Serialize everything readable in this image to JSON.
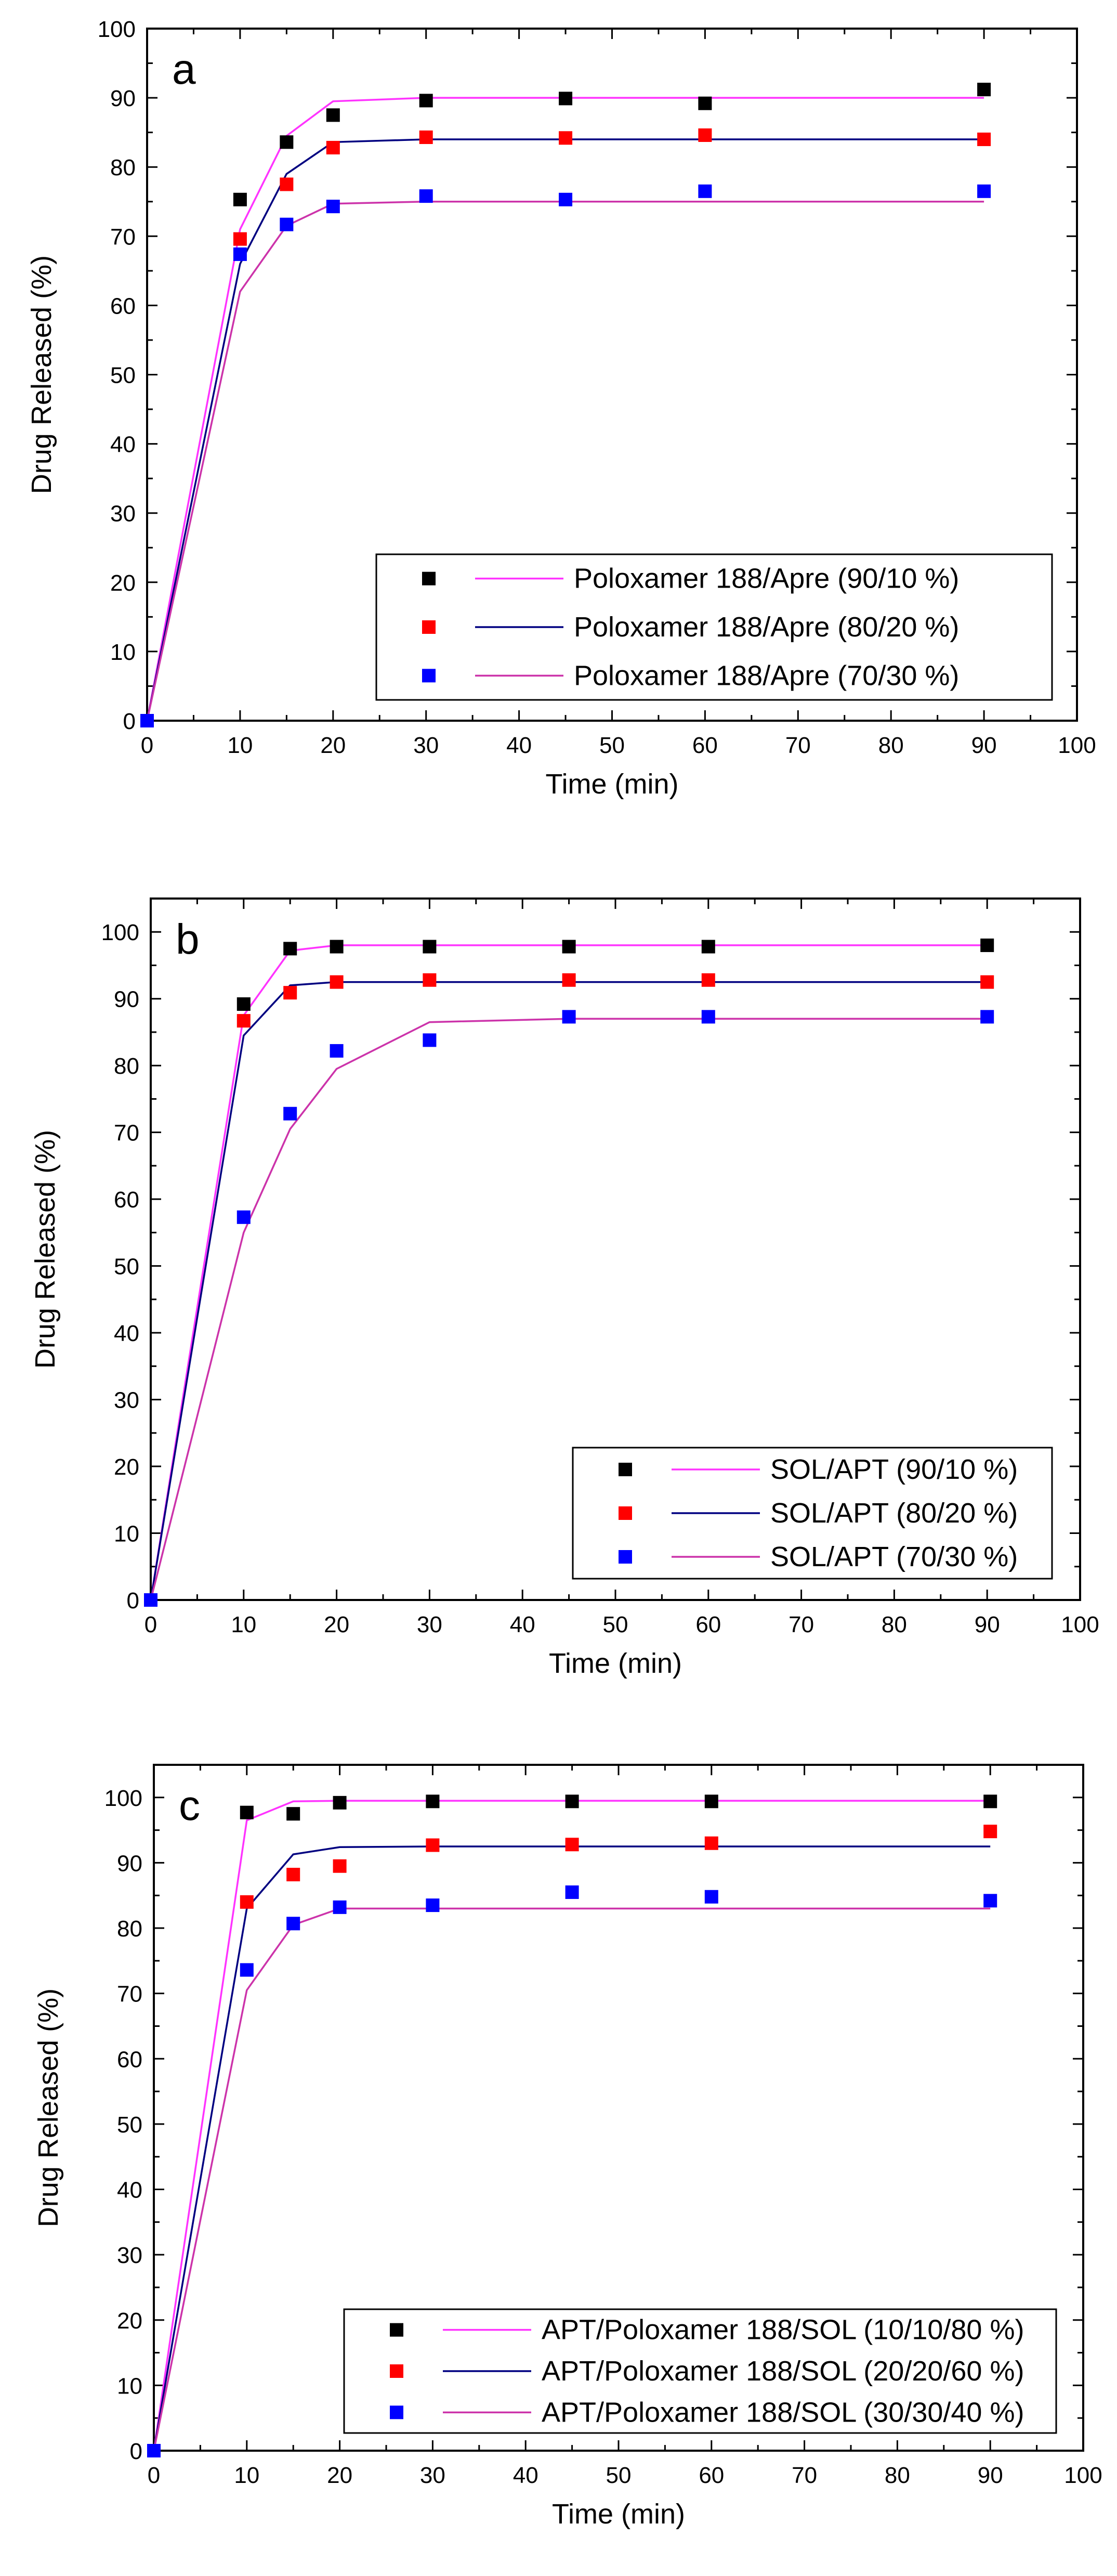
{
  "chart_data": [
    {
      "type": "scatter",
      "panel_label": "a",
      "xlabel": "Time (min)",
      "ylabel": "Drug Released (%)",
      "xlim": [
        0,
        100
      ],
      "ylim": [
        0,
        100
      ],
      "x_ticks": [
        0,
        10,
        20,
        30,
        40,
        50,
        60,
        70,
        80,
        90,
        100
      ],
      "y_ticks": [
        0,
        10,
        20,
        30,
        40,
        50,
        60,
        70,
        80,
        90,
        100
      ],
      "legend_position": "bottom-right",
      "series": [
        {
          "name": "Poloxamer 188/Apre (90/10 %)",
          "marker_color": "#000000",
          "line_color": "#ff33ff",
          "x": [
            0,
            10,
            15,
            20,
            30,
            45,
            60,
            90
          ],
          "y": [
            0,
            75.3,
            83.6,
            87.5,
            89.6,
            89.9,
            89.2,
            91.2
          ],
          "fit_x": [
            0,
            10,
            15,
            20,
            30,
            45,
            60,
            90
          ],
          "fit_y": [
            0,
            71,
            84.5,
            89.5,
            90,
            90,
            90,
            90
          ]
        },
        {
          "name": "Poloxamer 188/Apre (80/20 %)",
          "marker_color": "#ff0000",
          "line_color": "#000080",
          "x": [
            0,
            10,
            15,
            20,
            30,
            45,
            60,
            90
          ],
          "y": [
            0,
            69.6,
            77.5,
            82.8,
            84.3,
            84.2,
            84.6,
            84
          ],
          "fit_x": [
            0,
            10,
            15,
            20,
            30,
            45,
            60,
            90
          ],
          "fit_y": [
            0,
            66,
            79,
            83.6,
            84,
            84,
            84,
            84
          ]
        },
        {
          "name": "Poloxamer 188/Apre (70/30 %)",
          "marker_color": "#0000ff",
          "line_color": "#cc33aa",
          "x": [
            0,
            10,
            15,
            20,
            30,
            45,
            60,
            90
          ],
          "y": [
            0,
            67.4,
            71.7,
            74.3,
            75.8,
            75.3,
            76.5,
            76.5
          ],
          "fit_x": [
            0,
            10,
            15,
            20,
            30,
            45,
            60,
            90
          ],
          "fit_y": [
            0,
            62,
            71.5,
            74.7,
            75,
            75,
            75,
            75
          ]
        }
      ]
    },
    {
      "type": "scatter",
      "panel_label": "b",
      "xlabel": "Time (min)",
      "ylabel": "Drug Released (%)",
      "xlim": [
        0,
        100
      ],
      "ylim": [
        0,
        105
      ],
      "x_ticks": [
        0,
        10,
        20,
        30,
        40,
        50,
        60,
        70,
        80,
        90,
        100
      ],
      "y_ticks": [
        0,
        10,
        20,
        30,
        40,
        50,
        60,
        70,
        80,
        90,
        100
      ],
      "legend_position": "bottom-right",
      "series": [
        {
          "name": "SOL/APT (90/10 %)",
          "marker_color": "#000000",
          "line_color": "#ff33ff",
          "x": [
            0,
            10,
            15,
            20,
            30,
            45,
            60,
            90
          ],
          "y": [
            0,
            89.2,
            97.5,
            97.8,
            97.8,
            97.8,
            97.8,
            98
          ],
          "fit_x": [
            0,
            10,
            15,
            20,
            30,
            45,
            60,
            90
          ],
          "fit_y": [
            0,
            87.5,
            97.2,
            98,
            98,
            98,
            98,
            98
          ]
        },
        {
          "name": "SOL/APT (80/20 %)",
          "marker_color": "#ff0000",
          "line_color": "#000080",
          "x": [
            0,
            10,
            15,
            20,
            30,
            45,
            60,
            90
          ],
          "y": [
            0,
            86.7,
            90.9,
            92.5,
            92.8,
            92.8,
            92.8,
            92.5
          ],
          "fit_x": [
            0,
            10,
            15,
            20,
            30,
            45,
            60,
            90
          ],
          "fit_y": [
            0,
            84.5,
            92,
            92.5,
            92.5,
            92.5,
            92.5,
            92.5
          ]
        },
        {
          "name": "SOL/APT (70/30 %)",
          "marker_color": "#0000ff",
          "line_color": "#cc33aa",
          "x": [
            0,
            10,
            15,
            20,
            30,
            45,
            60,
            90
          ],
          "y": [
            0,
            57.3,
            72.8,
            82.2,
            83.8,
            87.3,
            87.3,
            87.3
          ],
          "fit_x": [
            0,
            10,
            15,
            20,
            30,
            45,
            60,
            90
          ],
          "fit_y": [
            0,
            55,
            70.5,
            79.5,
            86.5,
            87,
            87,
            87
          ]
        }
      ]
    },
    {
      "type": "scatter",
      "panel_label": "c",
      "xlabel": "Time (min)",
      "ylabel": "Drug Released (%)",
      "xlim": [
        0,
        100
      ],
      "ylim": [
        0,
        105
      ],
      "x_ticks": [
        0,
        10,
        20,
        30,
        40,
        50,
        60,
        70,
        80,
        90,
        100
      ],
      "y_ticks": [
        0,
        10,
        20,
        30,
        40,
        50,
        60,
        70,
        80,
        90,
        100
      ],
      "legend_position": "bottom-right",
      "series": [
        {
          "name": "APT/Poloxamer 188/SOL (10/10/80 %)",
          "marker_color": "#000000",
          "line_color": "#ff33ff",
          "x": [
            0,
            10,
            15,
            20,
            30,
            45,
            60,
            90
          ],
          "y": [
            0,
            97.7,
            97.5,
            99.2,
            99.4,
            99.4,
            99.4,
            99.4
          ],
          "fit_x": [
            0,
            10,
            15,
            20,
            30,
            45,
            60,
            90
          ],
          "fit_y": [
            0,
            96.5,
            99.4,
            99.5,
            99.5,
            99.5,
            99.5,
            99.5
          ]
        },
        {
          "name": "APT/Poloxamer 188/SOL (20/20/60 %)",
          "marker_color": "#ff0000",
          "line_color": "#000080",
          "x": [
            0,
            10,
            15,
            20,
            30,
            45,
            60,
            90
          ],
          "y": [
            0,
            84,
            88.2,
            89.5,
            92.7,
            92.8,
            93,
            94.8
          ],
          "fit_x": [
            0,
            10,
            15,
            20,
            30,
            45,
            60,
            90
          ],
          "fit_y": [
            0,
            83,
            91.3,
            92.4,
            92.5,
            92.5,
            92.5,
            92.5
          ]
        },
        {
          "name": "APT/Poloxamer 188/SOL (30/30/40 %)",
          "marker_color": "#0000ff",
          "line_color": "#cc33aa",
          "x": [
            0,
            10,
            15,
            20,
            30,
            45,
            60,
            90
          ],
          "y": [
            0,
            73.6,
            80.7,
            83.2,
            83.5,
            85.5,
            84.8,
            84.2
          ],
          "fit_x": [
            0,
            10,
            15,
            20,
            30,
            45,
            60,
            90
          ],
          "fit_y": [
            0,
            70.5,
            80.5,
            83,
            83,
            83,
            83,
            83
          ]
        }
      ]
    }
  ]
}
